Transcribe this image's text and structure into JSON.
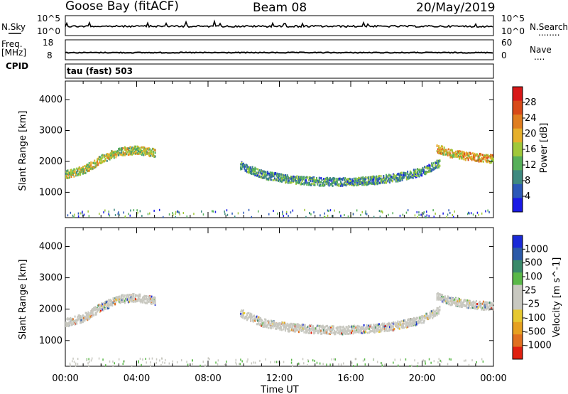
{
  "header": {
    "station": "Goose Bay (fitACF)",
    "beam": "Beam 08",
    "date": "20/May/2019"
  },
  "sidebar_labels": {
    "nsky": "N.Sky",
    "nsearch": "N.Search",
    "freq_l1": "Freq.",
    "freq_l2": "[MHz]",
    "nave": "Nave",
    "cpid": "CPID",
    "dots1": "........",
    "dots2": "...."
  },
  "small_axes": {
    "nsky_left_top": "10^5",
    "nsky_left_bottom": "10^0",
    "nsky_right_top": "10^5",
    "nsky_right_bottom": "10^0",
    "freq_left_top": "18",
    "freq_left_bottom": "8",
    "nave_right_top": "60",
    "nave_right_bottom": "0"
  },
  "cpid_text": "tau (fast) 503",
  "chart_data": [
    {
      "type": "heatmap",
      "name": "Power panel",
      "xlabel": "Time UT",
      "ylabel": "Slant Range [km]",
      "x_tick_labels": [
        "00:00",
        "04:00",
        "08:00",
        "12:00",
        "16:00",
        "20:00",
        "00:00"
      ],
      "xlim_hours": [
        0,
        24
      ],
      "y_ticks": [
        1000,
        2000,
        3000,
        4000
      ],
      "ylim": [
        180,
        4600
      ],
      "colorbar": {
        "label": "Power [dB]",
        "ticks": [
          "4",
          "8",
          "12",
          "16",
          "20",
          "24",
          "28"
        ],
        "colors": [
          "#1a1ae6",
          "#2c58b8",
          "#3f8a80",
          "#56b05a",
          "#a0c83a",
          "#e6b02c",
          "#e07e20",
          "#d84a18",
          "#d81818"
        ],
        "range": [
          0,
          32
        ]
      },
      "echo_bands": [
        {
          "t": [
            0.0,
            1.0,
            2.0,
            3.0,
            4.0,
            5.0
          ],
          "r": [
            1600,
            1750,
            2100,
            2350,
            2400,
            2300
          ],
          "value": 14
        },
        {
          "t": [
            9.8,
            11.0,
            12.5,
            14.0,
            15.5,
            17.0,
            18.5,
            20.0,
            21.0
          ],
          "r": [
            1900,
            1600,
            1450,
            1380,
            1360,
            1400,
            1500,
            1700,
            2000
          ],
          "value": 8
        },
        {
          "t": [
            20.8,
            21.5,
            22.5,
            23.3,
            24.0
          ],
          "r": [
            2450,
            2300,
            2200,
            2150,
            2100
          ],
          "value": 18
        }
      ]
    },
    {
      "type": "heatmap",
      "name": "Velocity panel",
      "xlabel": "Time UT",
      "ylabel": "Slant Range [km]",
      "x_tick_labels": [
        "00:00",
        "04:00",
        "08:00",
        "12:00",
        "16:00",
        "20:00",
        "00:00"
      ],
      "xlim_hours": [
        0,
        24
      ],
      "y_ticks": [
        1000,
        2000,
        3000,
        4000
      ],
      "ylim": [
        180,
        4600
      ],
      "colorbar": {
        "label": "Velocity [m s^-1]",
        "ticks": [
          "1000",
          "500",
          "100",
          "25",
          "-25",
          "-100",
          "-500",
          "-1000"
        ],
        "colors": [
          "#1a2ad8",
          "#2c5aa8",
          "#3a8a6a",
          "#5ab848",
          "#c8c8c0",
          "#c8c8c0",
          "#e6c830",
          "#e6a020",
          "#e07020",
          "#e02010"
        ]
      },
      "echo_bands": [
        {
          "t": [
            0.0,
            1.0,
            2.0,
            3.0,
            4.0,
            5.0
          ],
          "r": [
            1600,
            1750,
            2100,
            2350,
            2400,
            2300
          ],
          "value": 0
        },
        {
          "t": [
            9.8,
            11.0,
            12.5,
            14.0,
            15.5,
            17.0,
            18.5,
            20.0,
            21.0
          ],
          "r": [
            1900,
            1600,
            1450,
            1380,
            1360,
            1400,
            1500,
            1700,
            2000
          ],
          "value": 0
        },
        {
          "t": [
            20.8,
            21.5,
            22.5,
            23.3,
            24.0
          ],
          "r": [
            2450,
            2300,
            2200,
            2150,
            2100
          ],
          "value": 0
        }
      ]
    }
  ]
}
